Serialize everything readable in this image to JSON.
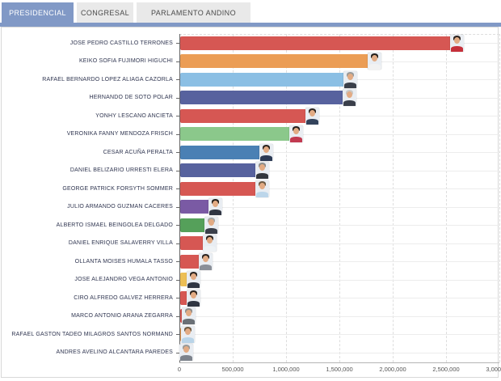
{
  "tabs": [
    {
      "label": "PRESIDENCIAL",
      "active": true
    },
    {
      "label": "CONGRESAL",
      "active": false
    },
    {
      "label": "PARLAMENTO ANDINO",
      "active": false
    }
  ],
  "colors": {
    "active_tab": "#8199c6",
    "inactive_tab": "#e9e9e9",
    "tab_strip": "#8199c6",
    "axis": "#666666",
    "grid": "#dedede",
    "candidate_label_text": "#2f3550",
    "tick_label_text": "#555555"
  },
  "chart_data": {
    "type": "bar",
    "orientation": "horizontal",
    "title": "",
    "xlabel": "",
    "ylabel": "",
    "xlim": [
      0,
      3000000
    ],
    "x_tick_labels": [
      "0",
      "500,000",
      "1,000,000",
      "1,500,000",
      "2,000,000",
      "2,500,000",
      "3,000,000"
    ],
    "x_tick_values": [
      0,
      500000,
      1000000,
      1500000,
      2000000,
      2500000,
      3000000
    ],
    "grid": true,
    "legend": "none",
    "series": [
      {
        "name": "JOSE PEDRO CASTILLO TERRONES",
        "value": 2550000,
        "color": "#d65753",
        "avatar": {
          "hair": "#2b2420",
          "shirt": "#c5303a"
        }
      },
      {
        "name": "KEIKO SOFIA FUJIMORI HIGUCHI",
        "value": 1780000,
        "color": "#eb9d55",
        "avatar": {
          "hair": "#241f1c",
          "shirt": "#f2f2f2"
        }
      },
      {
        "name": "RAFAEL BERNARDO LOPEZ ALIAGA CAZORLA",
        "value": 1555000,
        "color": "#8bbfe4",
        "avatar": {
          "hair": "#9a9a98",
          "shirt": "#3a3f4a"
        }
      },
      {
        "name": "HERNANDO DE SOTO POLAR",
        "value": 1545000,
        "color": "#57629e",
        "avatar": {
          "hair": "#c9c9c7",
          "shirt": "#3a3f4a"
        }
      },
      {
        "name": "YONHY LESCANO ANCIETA",
        "value": 1200000,
        "color": "#d65753",
        "avatar": {
          "hair": "#2b2420",
          "shirt": "#33435c"
        }
      },
      {
        "name": "VERONIKA FANNY MENDOZA FRISCH",
        "value": 1045000,
        "color": "#8bc88b",
        "avatar": {
          "hair": "#241f1c",
          "shirt": "#c23a50"
        }
      },
      {
        "name": "CESAR ACUÑA PERALTA",
        "value": 765000,
        "color": "#4a80b4",
        "avatar": {
          "hair": "#2b2420",
          "shirt": "#2c3a55"
        }
      },
      {
        "name": "DANIEL BELIZARIO URRESTI ELERA",
        "value": 730000,
        "color": "#57629e",
        "avatar": {
          "hair": "#8d8d8b",
          "shirt": "#33363d"
        }
      },
      {
        "name": "GEORGE PATRICK FORSYTH SOMMER",
        "value": 725000,
        "color": "#d65753",
        "avatar": {
          "hair": "#6d5a43",
          "shirt": "#bcd6ea"
        }
      },
      {
        "name": "JULIO ARMANDO GUZMAN CACERES",
        "value": 290000,
        "color": "#7a5aa4",
        "avatar": {
          "hair": "#241f1c",
          "shirt": "#2f3542"
        }
      },
      {
        "name": "ALBERTO ISMAEL BEINGOLEA DELGADO",
        "value": 250000,
        "color": "#55a05a",
        "avatar": {
          "hair": "#a8a8a6",
          "shirt": "#3a3f4a"
        }
      },
      {
        "name": "DANIEL ENRIQUE SALAVERRY VILLA",
        "value": 235000,
        "color": "#d65753",
        "avatar": {
          "hair": "#2b2420",
          "shirt": "#eef2f5"
        }
      },
      {
        "name": "OLLANTA MOISES HUMALA TASSO",
        "value": 200000,
        "color": "#d65753",
        "avatar": {
          "hair": "#2b2420",
          "shirt": "#8a8f98"
        }
      },
      {
        "name": "JOSE ALEJANDRO VEGA ANTONIO",
        "value": 85000,
        "color": "#edbf55",
        "avatar": {
          "hair": "#2b2420",
          "shirt": "#2f3542"
        }
      },
      {
        "name": "CIRO ALFREDO GALVEZ HERRERA",
        "value": 82000,
        "color": "#d65753",
        "avatar": {
          "hair": "#2b2420",
          "shirt": "#2f3542"
        }
      },
      {
        "name": "MARCO ANTONIO ARANA ZEGARRA",
        "value": 40000,
        "color": "#d65753",
        "avatar": {
          "hair": "#8d8d8b",
          "shirt": "#6a7076"
        }
      },
      {
        "name": "RAFAEL GASTON TADEO MILAGROS SANTOS NORMAND",
        "value": 30000,
        "color": "#e89a50",
        "avatar": {
          "hair": "#6d5a43",
          "shirt": "#b9d4e8"
        }
      },
      {
        "name": "ANDRES AVELINO ALCANTARA PAREDES",
        "value": 18000,
        "color": "#e3d44e",
        "avatar": {
          "hair": "#9a9a98",
          "shirt": "#7d838c"
        }
      }
    ]
  }
}
